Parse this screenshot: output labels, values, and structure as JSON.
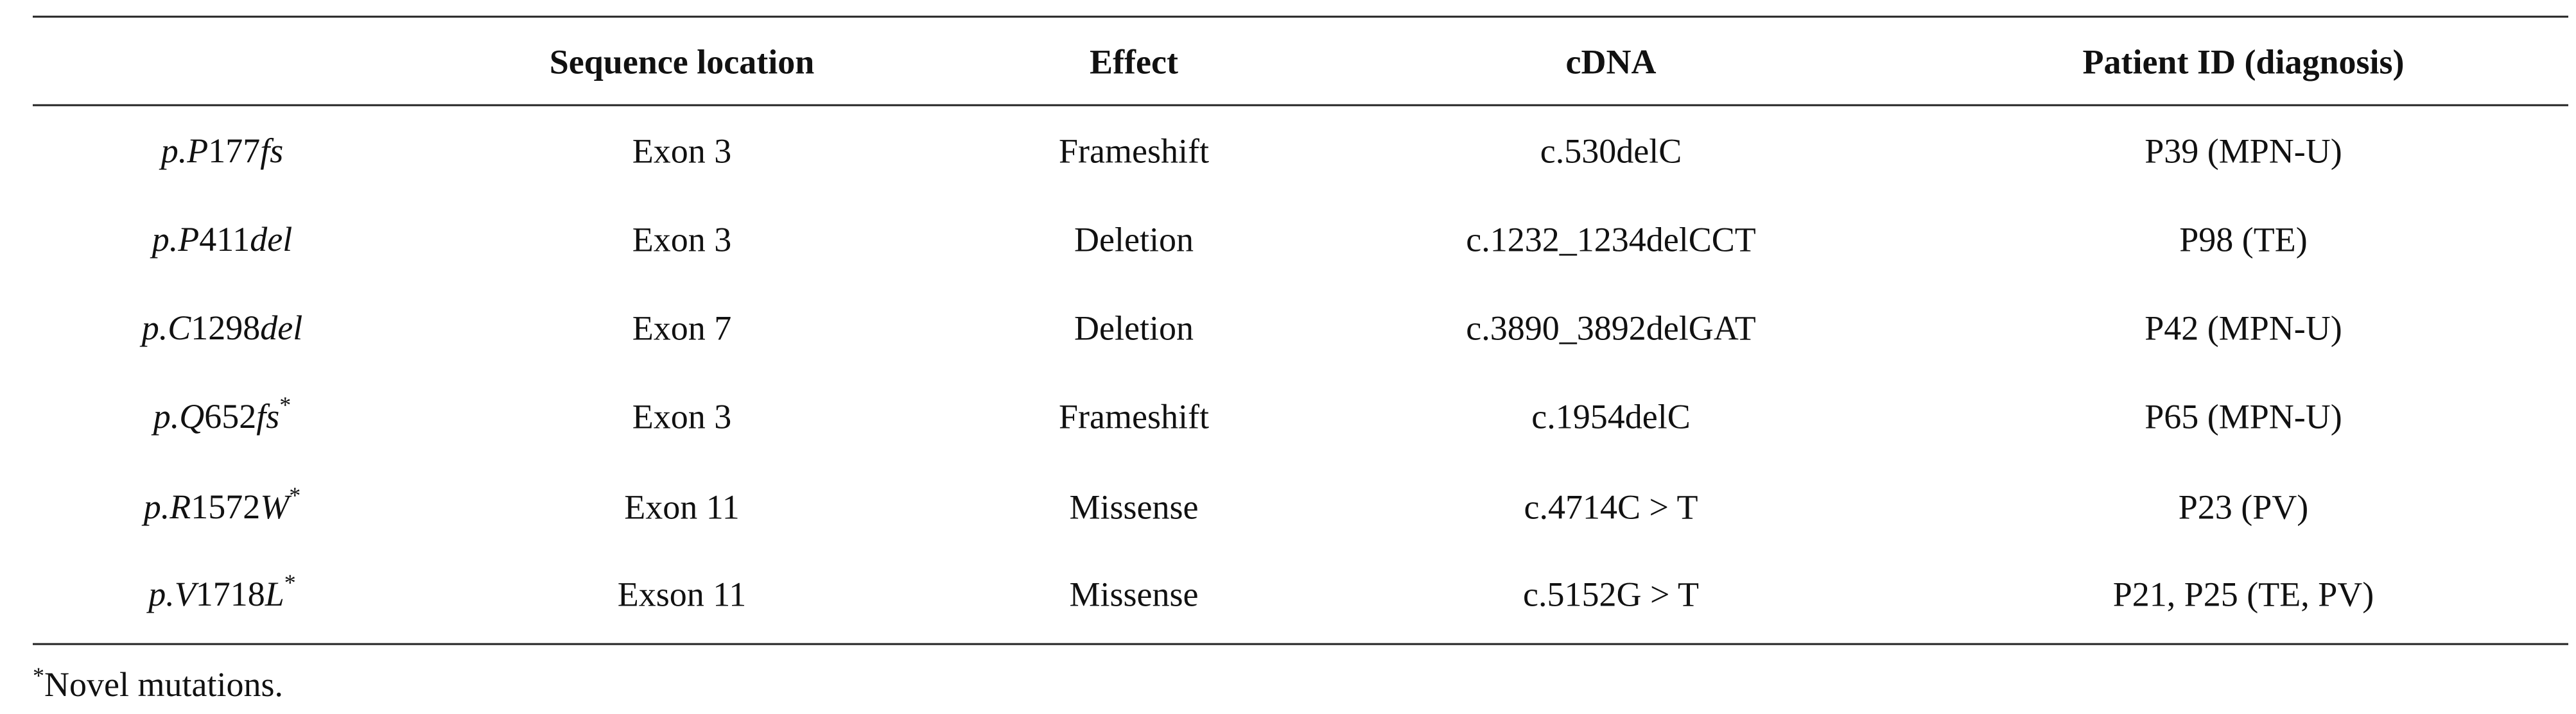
{
  "table": {
    "header": [
      "Sequence location",
      "Effect",
      "cDNA",
      "Patient ID (diagnosis)"
    ],
    "rows": [
      {
        "mutation": "p.P177fs",
        "location": "Exon 3",
        "effect": "Frameshift",
        "cdna": "c.530delC",
        "patient": "P39 (MPN-U)"
      },
      {
        "mutation": "p.P411del",
        "location": "Exon 3",
        "effect": "Deletion",
        "cdna": "c.1232_1234delCCT",
        "patient": "P98 (TE)"
      },
      {
        "mutation": "p.C1298del",
        "location": "Exon 7",
        "effect": "Deletion",
        "cdna": "c.3890_3892delGAT",
        "patient": "P42 (MPN-U)"
      },
      {
        "mutation": "p.Q652fs",
        "mark": "*",
        "location": "Exon 3",
        "effect": "Frameshift",
        "cdna": "c.1954delC",
        "patient": "P65 (MPN-U)"
      },
      {
        "mutation": "p.R1572W",
        "mark": "*",
        "location": "Exon 11",
        "effect": "Missense",
        "cdna": "c.4714C > T",
        "patient": "P23 (PV)"
      },
      {
        "mutation": "p.V1718L",
        "mark": "*",
        "location": "Exson 11",
        "effect": "Missense",
        "cdna": "c.5152G > T",
        "patient": "P21, P25 (TE, PV)"
      }
    ],
    "footnote": {
      "mark": "*",
      "text": "Novel mutations."
    }
  }
}
